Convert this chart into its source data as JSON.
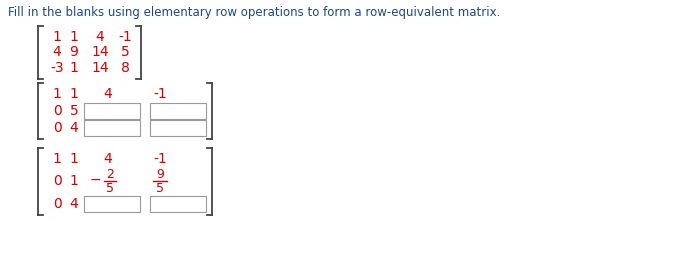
{
  "title": "Fill in the blanks using elementary row operations to form a row-equivalent matrix.",
  "title_color": "#1f497d",
  "red_color": "#cc0000",
  "bg_color": "#ffffff",
  "matrix1_rows": [
    [
      "1",
      "1",
      "4",
      "-1"
    ],
    [
      "4",
      "9",
      "14",
      "5"
    ],
    [
      "-3",
      "1",
      "14",
      "8"
    ]
  ],
  "fig_w": 6.92,
  "fig_h": 2.64,
  "dpi": 100
}
